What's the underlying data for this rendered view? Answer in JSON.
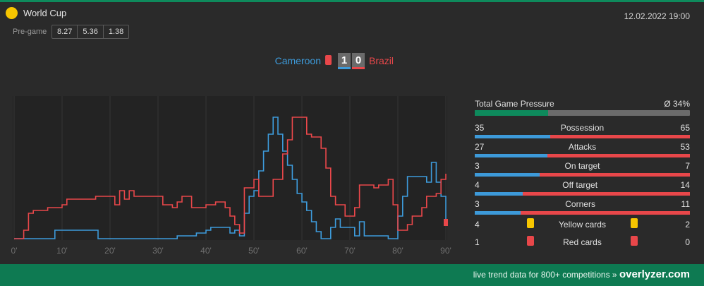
{
  "competition": {
    "name": "World Cup",
    "icon": "competition-dot-icon"
  },
  "datetime": "12.02.2022 19:00",
  "pregame": {
    "label": "Pre-game",
    "odds": [
      "8.27",
      "5.36",
      "1.38"
    ]
  },
  "match": {
    "home": "Cameroon",
    "away": "Brazil",
    "home_score": "1",
    "away_score": "0"
  },
  "colors": {
    "home": "#3d9ad9",
    "away": "#e8474a",
    "accent": "#0e8a5c",
    "yellow": "#f7c600"
  },
  "chart_data": {
    "type": "line",
    "xlabel": "",
    "ylabel": "",
    "xlim": [
      0,
      90
    ],
    "ylim": [
      0,
      100
    ],
    "x_ticks": [
      "0'",
      "10'",
      "20'",
      "30'",
      "40'",
      "50'",
      "60'",
      "70'",
      "80'",
      "90'"
    ],
    "grid": true,
    "series": [
      {
        "team": "home",
        "points": [
          [
            0,
            0
          ],
          [
            8.5,
            0
          ],
          [
            8.5,
            6
          ],
          [
            17.5,
            6
          ],
          [
            17.5,
            0
          ],
          [
            34,
            0
          ],
          [
            34,
            2
          ],
          [
            38,
            2
          ],
          [
            38,
            4
          ],
          [
            40,
            4
          ],
          [
            40,
            6
          ],
          [
            41,
            6
          ],
          [
            41,
            8
          ],
          [
            45,
            8
          ],
          [
            45,
            4
          ],
          [
            46,
            4
          ],
          [
            46,
            6
          ],
          [
            47,
            6
          ],
          [
            47,
            2
          ],
          [
            48,
            2
          ],
          [
            48,
            18
          ],
          [
            49,
            18
          ],
          [
            49,
            30
          ],
          [
            50,
            30
          ],
          [
            50,
            34
          ],
          [
            51,
            34
          ],
          [
            51,
            48
          ],
          [
            52,
            48
          ],
          [
            52,
            62
          ],
          [
            53,
            62
          ],
          [
            53,
            74
          ],
          [
            54,
            74
          ],
          [
            54,
            86
          ],
          [
            55,
            86
          ],
          [
            55,
            74
          ],
          [
            56,
            74
          ],
          [
            56,
            62
          ],
          [
            57,
            62
          ],
          [
            57,
            52
          ],
          [
            58,
            52
          ],
          [
            58,
            42
          ],
          [
            59,
            42
          ],
          [
            59,
            32
          ],
          [
            60,
            32
          ],
          [
            60,
            26
          ],
          [
            61,
            26
          ],
          [
            61,
            20
          ],
          [
            62,
            20
          ],
          [
            62,
            12
          ],
          [
            63,
            12
          ],
          [
            63,
            5
          ],
          [
            64,
            5
          ],
          [
            64,
            0
          ],
          [
            66,
            0
          ],
          [
            66,
            8
          ],
          [
            67,
            8
          ],
          [
            67,
            14
          ],
          [
            68,
            14
          ],
          [
            68,
            8
          ],
          [
            71,
            8
          ],
          [
            71,
            2
          ],
          [
            72,
            2
          ],
          [
            72,
            12
          ],
          [
            73,
            12
          ],
          [
            73,
            2
          ],
          [
            78,
            2
          ],
          [
            78,
            0
          ],
          [
            80,
            0
          ],
          [
            80,
            16
          ],
          [
            81,
            16
          ],
          [
            81,
            30
          ],
          [
            82,
            30
          ],
          [
            82,
            44
          ],
          [
            86,
            44
          ],
          [
            86,
            40
          ],
          [
            87,
            40
          ],
          [
            87,
            54
          ],
          [
            88,
            54
          ],
          [
            88,
            40
          ],
          [
            89,
            40
          ],
          [
            89,
            30
          ],
          [
            90,
            30
          ],
          [
            90,
            14
          ]
        ]
      },
      {
        "team": "away",
        "points": [
          [
            0,
            0
          ],
          [
            2,
            0
          ],
          [
            2,
            6
          ],
          [
            3,
            6
          ],
          [
            3,
            18
          ],
          [
            4,
            18
          ],
          [
            4,
            20
          ],
          [
            7,
            20
          ],
          [
            7,
            22
          ],
          [
            10,
            22
          ],
          [
            10,
            24
          ],
          [
            11,
            24
          ],
          [
            11,
            28
          ],
          [
            17,
            28
          ],
          [
            17,
            30
          ],
          [
            21,
            30
          ],
          [
            21,
            24
          ],
          [
            22,
            24
          ],
          [
            22,
            34
          ],
          [
            23,
            34
          ],
          [
            23,
            28
          ],
          [
            24,
            28
          ],
          [
            24,
            34
          ],
          [
            25,
            34
          ],
          [
            25,
            30
          ],
          [
            31,
            30
          ],
          [
            31,
            24
          ],
          [
            33,
            24
          ],
          [
            33,
            22
          ],
          [
            34,
            22
          ],
          [
            34,
            26
          ],
          [
            35,
            26
          ],
          [
            35,
            30
          ],
          [
            37,
            30
          ],
          [
            37,
            22
          ],
          [
            40,
            22
          ],
          [
            40,
            24
          ],
          [
            42,
            24
          ],
          [
            42,
            26
          ],
          [
            44,
            26
          ],
          [
            44,
            22
          ],
          [
            45,
            22
          ],
          [
            45,
            16
          ],
          [
            46,
            16
          ],
          [
            46,
            10
          ],
          [
            47,
            10
          ],
          [
            47,
            4
          ],
          [
            48,
            4
          ],
          [
            48,
            36
          ],
          [
            50,
            36
          ],
          [
            50,
            42
          ],
          [
            51,
            42
          ],
          [
            51,
            30
          ],
          [
            54,
            30
          ],
          [
            54,
            42
          ],
          [
            56,
            42
          ],
          [
            56,
            60
          ],
          [
            57,
            60
          ],
          [
            57,
            70
          ],
          [
            58,
            70
          ],
          [
            58,
            86
          ],
          [
            61,
            86
          ],
          [
            61,
            74
          ],
          [
            62,
            74
          ],
          [
            62,
            72
          ],
          [
            64,
            72
          ],
          [
            64,
            64
          ],
          [
            65,
            64
          ],
          [
            65,
            50
          ],
          [
            66,
            50
          ],
          [
            66,
            30
          ],
          [
            67,
            30
          ],
          [
            67,
            24
          ],
          [
            69,
            24
          ],
          [
            69,
            16
          ],
          [
            71,
            16
          ],
          [
            71,
            22
          ],
          [
            72,
            22
          ],
          [
            72,
            38
          ],
          [
            75,
            38
          ],
          [
            75,
            36
          ],
          [
            76,
            36
          ],
          [
            76,
            38
          ],
          [
            78,
            38
          ],
          [
            78,
            42
          ],
          [
            79,
            42
          ],
          [
            79,
            24
          ],
          [
            80,
            24
          ],
          [
            80,
            6
          ],
          [
            82,
            6
          ],
          [
            82,
            10
          ],
          [
            83,
            10
          ],
          [
            83,
            16
          ],
          [
            85,
            16
          ],
          [
            85,
            22
          ],
          [
            86,
            22
          ],
          [
            86,
            30
          ],
          [
            88,
            30
          ],
          [
            88,
            32
          ],
          [
            89,
            32
          ],
          [
            89,
            42
          ],
          [
            90,
            42
          ],
          [
            90,
            46
          ]
        ]
      }
    ]
  },
  "pressure": {
    "label": "Total Game Pressure",
    "avg": "Ø 34%",
    "percent": 34
  },
  "stats": [
    {
      "label": "Possession",
      "home": "35",
      "away": "65"
    },
    {
      "label": "Attacks",
      "home": "27",
      "away": "53"
    },
    {
      "label": "On target",
      "home": "3",
      "away": "7"
    },
    {
      "label": "Off target",
      "home": "4",
      "away": "14"
    },
    {
      "label": "Corners",
      "home": "3",
      "away": "11"
    }
  ],
  "cards": [
    {
      "label": "Yellow cards",
      "home": "4",
      "away": "2",
      "color": "#f7c600"
    },
    {
      "label": "Red cards",
      "home": "1",
      "away": "0",
      "color": "#e8474a"
    }
  ],
  "footer": {
    "text": "live trend data for 800+ competitions »",
    "brand": "overlyzer.com"
  }
}
